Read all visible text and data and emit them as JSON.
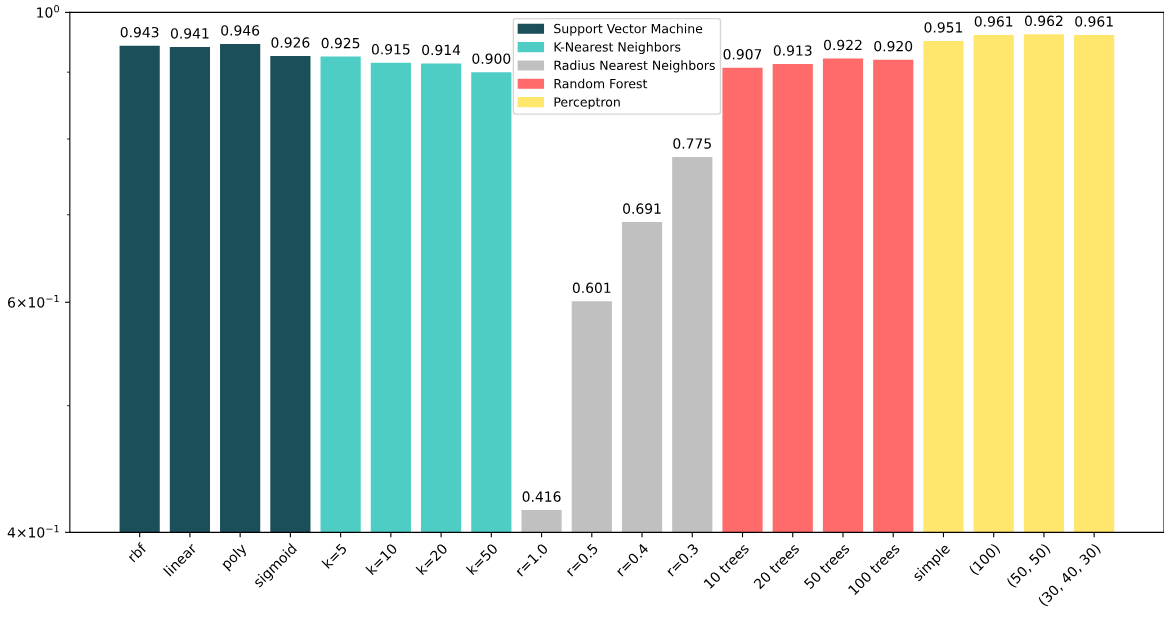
{
  "chart_data": {
    "type": "bar",
    "log": "y",
    "categories": [
      "rbf",
      "linear",
      "poly",
      "sigmoid",
      "k=5",
      "k=10",
      "k=20",
      "k=50",
      "r=1.0",
      "r=0.5",
      "r=0.4",
      "r=0.3",
      "10 trees",
      "20 trees",
      "50 trees",
      "100 trees",
      "simple",
      "(100)",
      "(50, 50)",
      "(30, 40, 30)"
    ],
    "series": [
      {
        "name": "Support Vector Machine",
        "color": "#1b4f5a",
        "values": [
          0.943,
          0.941,
          0.946,
          0.926,
          null,
          null,
          null,
          null,
          null,
          null,
          null,
          null,
          null,
          null,
          null,
          null,
          null,
          null,
          null,
          null
        ],
        "value_labels": [
          "0.943",
          "0.941",
          "0.946",
          "0.926",
          null,
          null,
          null,
          null,
          null,
          null,
          null,
          null,
          null,
          null,
          null,
          null,
          null,
          null,
          null,
          null
        ]
      },
      {
        "name": "K-Nearest Neighbors",
        "color": "#4ecdc4",
        "values": [
          null,
          null,
          null,
          null,
          0.925,
          0.915,
          0.914,
          0.9,
          null,
          null,
          null,
          null,
          null,
          null,
          null,
          null,
          null,
          null,
          null,
          null
        ],
        "value_labels": [
          null,
          null,
          null,
          null,
          "0.925",
          "0.915",
          "0.914",
          "0.900",
          null,
          null,
          null,
          null,
          null,
          null,
          null,
          null,
          null,
          null,
          null,
          null
        ]
      },
      {
        "name": "Radius Nearest Neighbors",
        "color": "#c0c0c0",
        "values": [
          null,
          null,
          null,
          null,
          null,
          null,
          null,
          null,
          0.416,
          0.601,
          0.691,
          0.775,
          null,
          null,
          null,
          null,
          null,
          null,
          null,
          null
        ],
        "value_labels": [
          null,
          null,
          null,
          null,
          null,
          null,
          null,
          null,
          "0.416",
          "0.601",
          "0.691",
          "0.775",
          null,
          null,
          null,
          null,
          null,
          null,
          null,
          null
        ]
      },
      {
        "name": "Random Forest",
        "color": "#ff6b6b",
        "values": [
          null,
          null,
          null,
          null,
          null,
          null,
          null,
          null,
          null,
          null,
          null,
          null,
          0.907,
          0.913,
          0.922,
          0.92,
          null,
          null,
          null,
          null
        ],
        "value_labels": [
          null,
          null,
          null,
          null,
          null,
          null,
          null,
          null,
          null,
          null,
          null,
          null,
          "0.907",
          "0.913",
          "0.922",
          "0.920",
          null,
          null,
          null,
          null
        ]
      },
      {
        "name": "Perceptron",
        "color": "#ffe66d",
        "values": [
          null,
          null,
          null,
          null,
          null,
          null,
          null,
          null,
          null,
          null,
          null,
          null,
          null,
          null,
          null,
          null,
          0.951,
          0.961,
          0.962,
          0.961
        ],
        "value_labels": [
          null,
          null,
          null,
          null,
          null,
          null,
          null,
          null,
          null,
          null,
          null,
          null,
          null,
          null,
          null,
          null,
          "0.951",
          "0.961",
          "0.962",
          "0.961"
        ]
      }
    ],
    "ylim": [
      0.4,
      1.0
    ],
    "yticks": [
      {
        "value": 0.4,
        "label": "4×10$^{−1}$"
      },
      {
        "value": 0.5,
        "label": null
      },
      {
        "value": 0.6,
        "label": "6×10$^{−1}$"
      },
      {
        "value": 0.7,
        "label": null
      },
      {
        "value": 0.8,
        "label": null
      },
      {
        "value": 0.9,
        "label": null
      },
      {
        "value": 1.0,
        "label": "10$^{0}$"
      }
    ],
    "legend": "top",
    "grid": false
  }
}
